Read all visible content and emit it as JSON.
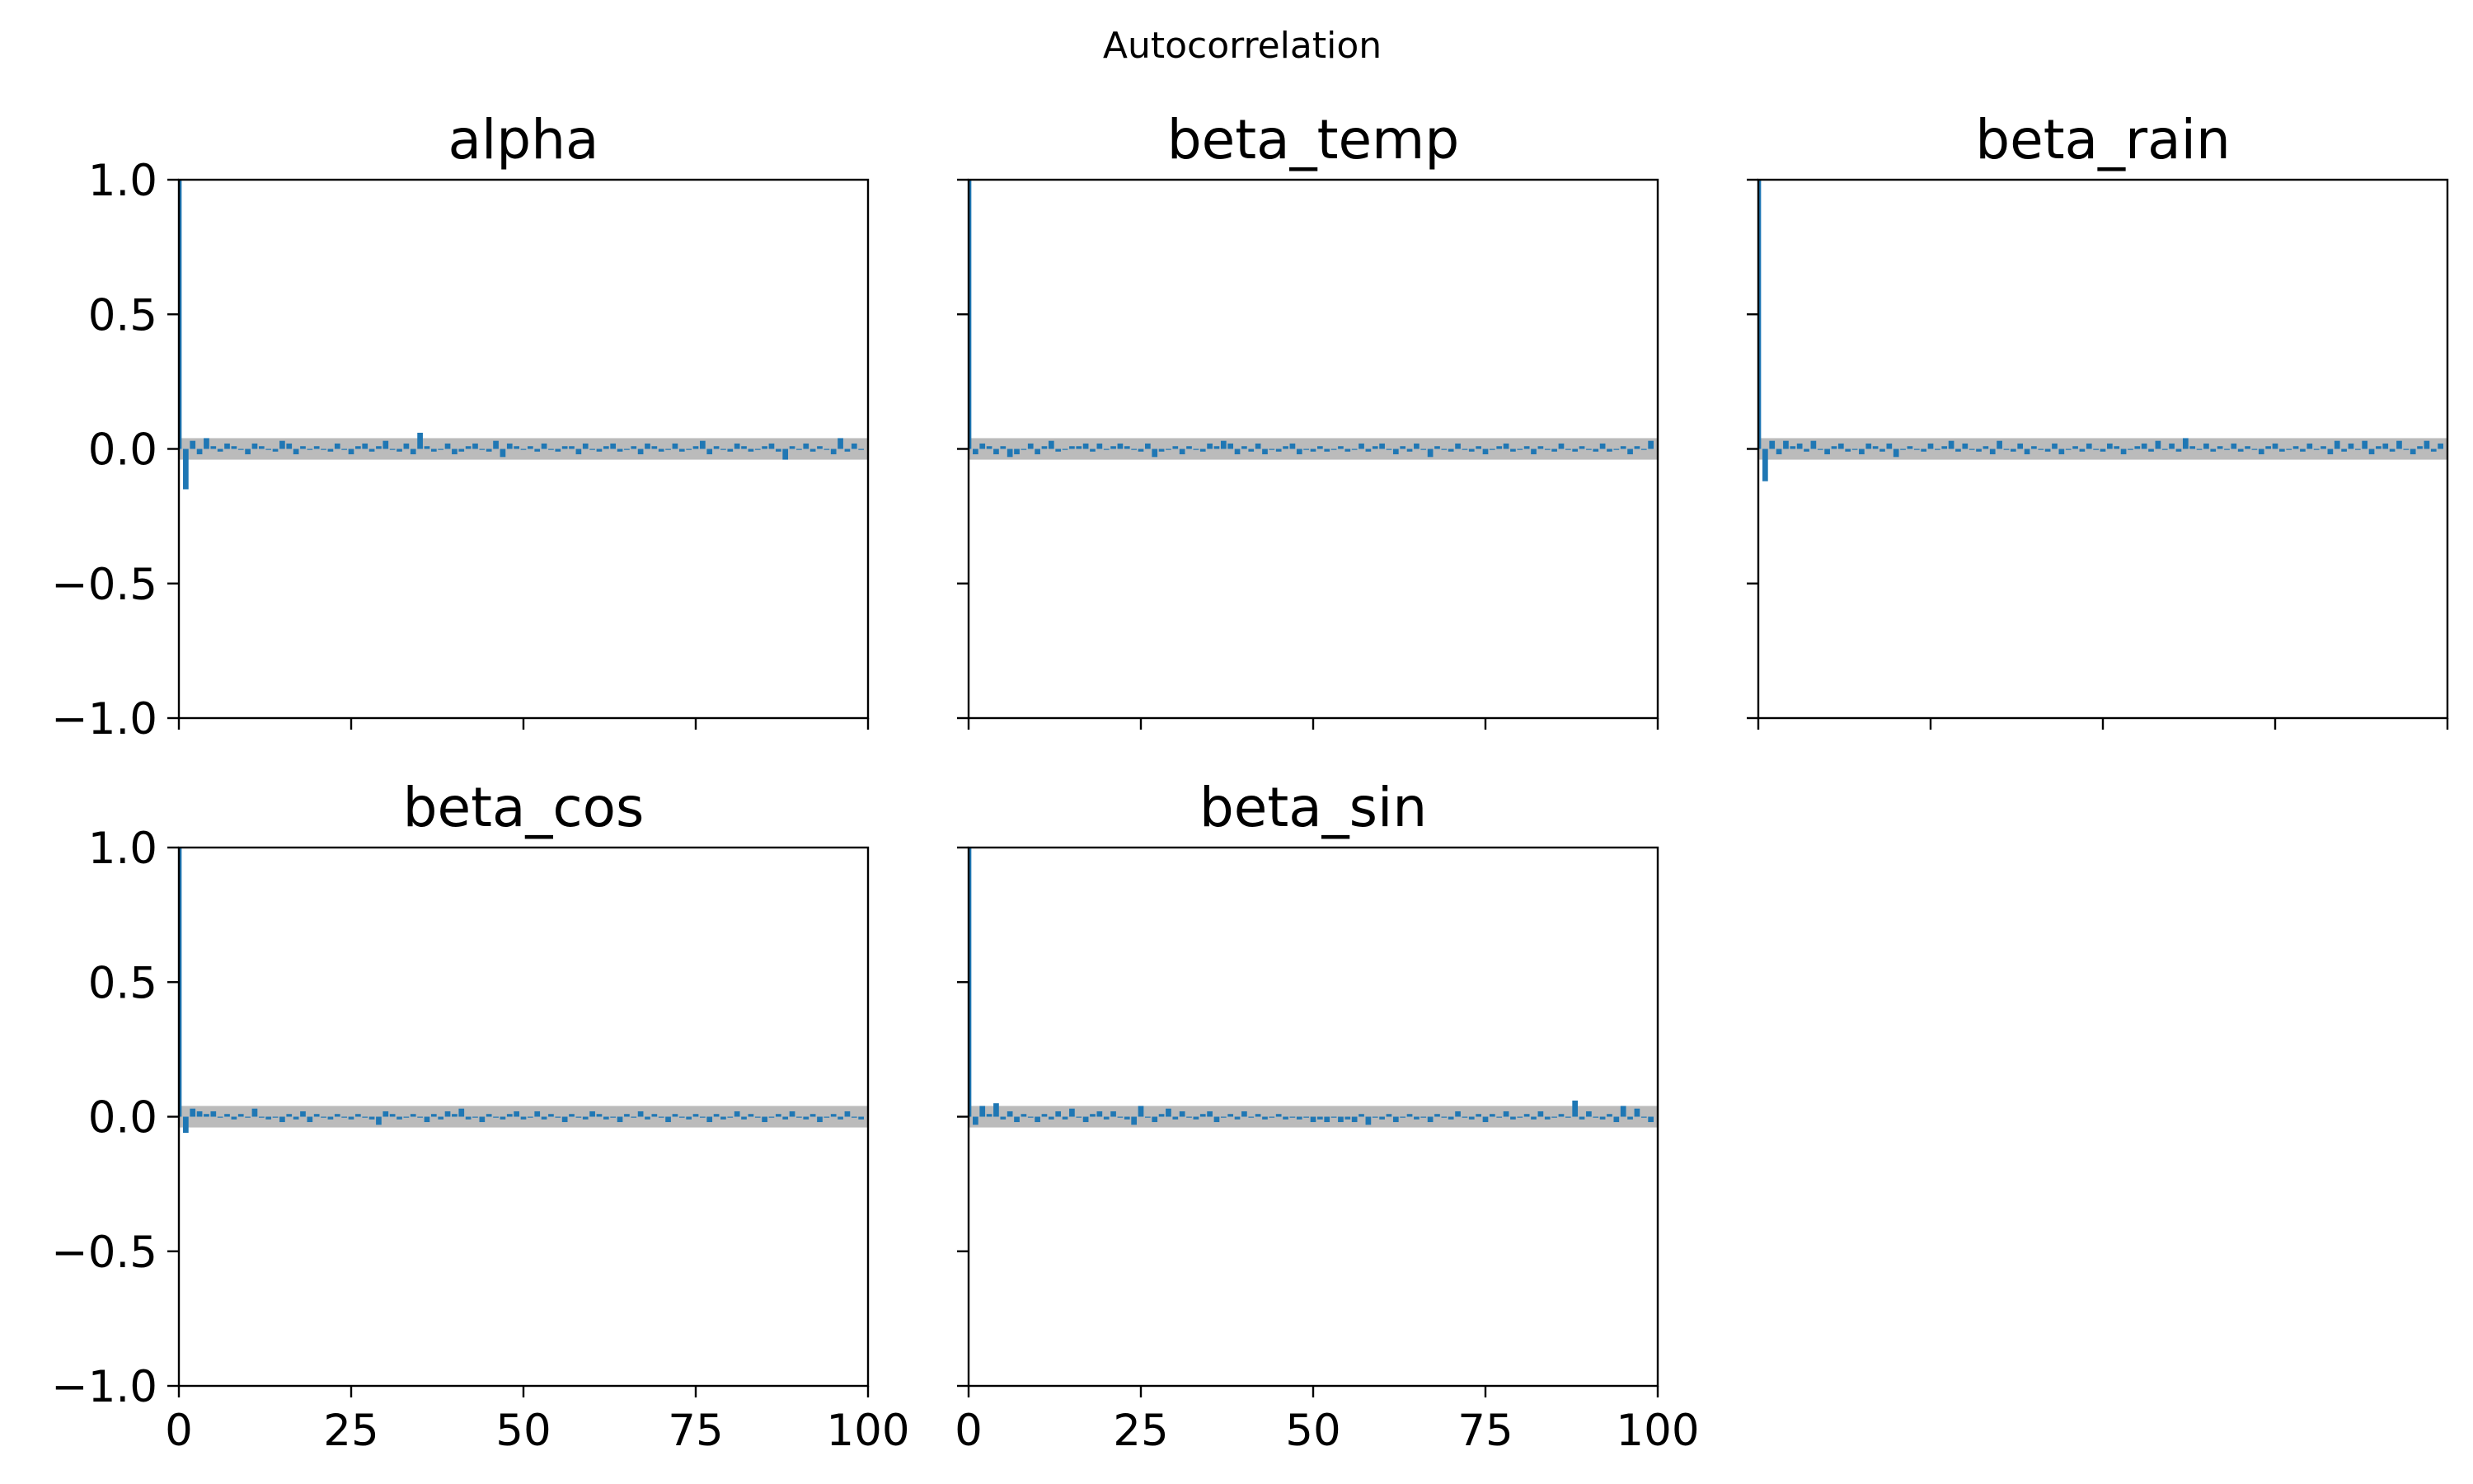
{
  "suptitle": "Autocorrelation",
  "chart_data": {
    "type": "bar",
    "layout": "2x3 grid of autocorrelation subplots, last cell empty, shared axes",
    "xlim": [
      0,
      100
    ],
    "ylim": [
      -1.0,
      1.0
    ],
    "xticks": [
      0,
      25,
      50,
      75,
      100
    ],
    "xtick_labels": [
      "0",
      "25",
      "50",
      "75",
      "100"
    ],
    "yticks": [
      1.0,
      0.5,
      0.0,
      -0.5,
      -1.0
    ],
    "ytick_labels": [
      "1.0",
      "0.5",
      "0.0",
      "−0.5",
      "−1.0"
    ],
    "confidence_band": [
      -0.04,
      0.04
    ],
    "colors": {
      "bars": "#1f77b4",
      "band": "#bbbbbb",
      "axes": "#000000"
    },
    "grid": false,
    "panels": [
      {
        "title": "alpha",
        "lags": [
          0,
          1,
          2,
          3,
          4,
          5,
          6,
          7,
          8,
          9,
          10,
          11,
          12,
          13,
          14,
          15,
          16,
          17,
          18,
          19,
          20,
          21,
          22,
          23,
          24,
          25,
          26,
          27,
          28,
          29,
          30,
          31,
          32,
          33,
          34,
          35,
          36,
          37,
          38,
          39,
          40,
          41,
          42,
          43,
          44,
          45,
          46,
          47,
          48,
          49,
          50,
          51,
          52,
          53,
          54,
          55,
          56,
          57,
          58,
          59,
          60,
          61,
          62,
          63,
          64,
          65,
          66,
          67,
          68,
          69,
          70,
          71,
          72,
          73,
          74,
          75,
          76,
          77,
          78,
          79,
          80,
          81,
          82,
          83,
          84,
          85,
          86,
          87,
          88,
          89,
          90,
          91,
          92,
          93,
          94,
          95,
          96,
          97,
          98,
          99
        ],
        "values": [
          1.0,
          -0.15,
          0.03,
          -0.02,
          0.04,
          0.01,
          -0.01,
          0.02,
          0.01,
          0.0,
          -0.02,
          0.02,
          0.01,
          0.0,
          -0.01,
          0.03,
          0.02,
          -0.02,
          0.01,
          0.0,
          0.01,
          0.0,
          -0.01,
          0.02,
          0.0,
          -0.02,
          0.01,
          0.02,
          -0.01,
          0.01,
          0.03,
          0.0,
          -0.01,
          0.02,
          -0.02,
          0.06,
          0.01,
          -0.01,
          0.0,
          0.02,
          -0.02,
          -0.01,
          0.01,
          0.02,
          0.0,
          -0.01,
          0.03,
          -0.03,
          0.02,
          0.01,
          0.0,
          0.01,
          -0.01,
          0.02,
          0.0,
          -0.01,
          0.01,
          0.01,
          -0.02,
          0.02,
          0.0,
          -0.01,
          0.01,
          0.02,
          -0.01,
          0.0,
          0.01,
          -0.02,
          0.02,
          0.01,
          -0.01,
          0.0,
          0.02,
          -0.01,
          0.0,
          0.01,
          0.03,
          -0.02,
          0.01,
          0.0,
          -0.01,
          0.02,
          0.01,
          -0.01,
          0.0,
          0.01,
          0.02,
          -0.01,
          -0.04,
          0.01,
          0.0,
          0.02,
          -0.01,
          0.01,
          0.0,
          -0.02,
          0.04,
          -0.01,
          0.02,
          0.0
        ]
      },
      {
        "title": "beta_temp",
        "lags": [
          0,
          1,
          2,
          3,
          4,
          5,
          6,
          7,
          8,
          9,
          10,
          11,
          12,
          13,
          14,
          15,
          16,
          17,
          18,
          19,
          20,
          21,
          22,
          23,
          24,
          25,
          26,
          27,
          28,
          29,
          30,
          31,
          32,
          33,
          34,
          35,
          36,
          37,
          38,
          39,
          40,
          41,
          42,
          43,
          44,
          45,
          46,
          47,
          48,
          49,
          50,
          51,
          52,
          53,
          54,
          55,
          56,
          57,
          58,
          59,
          60,
          61,
          62,
          63,
          64,
          65,
          66,
          67,
          68,
          69,
          70,
          71,
          72,
          73,
          74,
          75,
          76,
          77,
          78,
          79,
          80,
          81,
          82,
          83,
          84,
          85,
          86,
          87,
          88,
          89,
          90,
          91,
          92,
          93,
          94,
          95,
          96,
          97,
          98,
          99
        ],
        "values": [
          1.0,
          -0.02,
          0.02,
          0.01,
          -0.02,
          0.01,
          -0.03,
          -0.02,
          0.0,
          0.02,
          -0.02,
          0.01,
          0.03,
          -0.01,
          0.0,
          0.01,
          0.01,
          0.02,
          -0.01,
          0.02,
          0.0,
          0.01,
          0.02,
          0.01,
          0.0,
          -0.01,
          0.02,
          -0.03,
          -0.01,
          0.0,
          0.01,
          -0.02,
          0.01,
          0.0,
          -0.01,
          0.02,
          0.01,
          0.03,
          0.02,
          -0.02,
          0.01,
          -0.01,
          0.02,
          -0.02,
          0.0,
          -0.01,
          0.01,
          0.02,
          -0.02,
          0.0,
          -0.01,
          0.01,
          -0.01,
          0.0,
          0.01,
          -0.01,
          0.0,
          0.02,
          -0.01,
          0.01,
          0.02,
          0.0,
          -0.02,
          0.01,
          -0.01,
          0.02,
          0.0,
          -0.03,
          0.01,
          0.0,
          -0.01,
          0.02,
          0.0,
          -0.01,
          0.01,
          -0.02,
          0.0,
          0.01,
          0.02,
          -0.01,
          0.0,
          0.01,
          -0.02,
          0.01,
          0.0,
          -0.01,
          0.02,
          0.0,
          -0.01,
          0.01,
          0.0,
          -0.01,
          0.02,
          -0.01,
          0.0,
          0.01,
          -0.02,
          0.01,
          0.0,
          0.03
        ]
      },
      {
        "title": "beta_rain",
        "lags": [
          0,
          1,
          2,
          3,
          4,
          5,
          6,
          7,
          8,
          9,
          10,
          11,
          12,
          13,
          14,
          15,
          16,
          17,
          18,
          19,
          20,
          21,
          22,
          23,
          24,
          25,
          26,
          27,
          28,
          29,
          30,
          31,
          32,
          33,
          34,
          35,
          36,
          37,
          38,
          39,
          40,
          41,
          42,
          43,
          44,
          45,
          46,
          47,
          48,
          49,
          50,
          51,
          52,
          53,
          54,
          55,
          56,
          57,
          58,
          59,
          60,
          61,
          62,
          63,
          64,
          65,
          66,
          67,
          68,
          69,
          70,
          71,
          72,
          73,
          74,
          75,
          76,
          77,
          78,
          79,
          80,
          81,
          82,
          83,
          84,
          85,
          86,
          87,
          88,
          89,
          90,
          91,
          92,
          93,
          94,
          95,
          96,
          97,
          98,
          99
        ],
        "values": [
          1.0,
          -0.12,
          0.03,
          -0.02,
          0.03,
          0.01,
          0.02,
          -0.01,
          0.03,
          0.0,
          -0.02,
          0.01,
          0.02,
          -0.01,
          0.0,
          -0.02,
          0.02,
          0.01,
          -0.01,
          0.02,
          -0.03,
          0.0,
          0.01,
          0.0,
          -0.01,
          0.02,
          0.0,
          0.01,
          0.03,
          -0.01,
          0.02,
          0.0,
          -0.01,
          0.01,
          -0.02,
          0.03,
          0.0,
          -0.01,
          0.02,
          -0.02,
          0.01,
          0.0,
          -0.01,
          0.02,
          -0.02,
          0.0,
          0.01,
          -0.01,
          0.02,
          0.0,
          -0.01,
          0.02,
          0.01,
          -0.02,
          0.0,
          0.01,
          0.02,
          -0.01,
          0.03,
          0.0,
          0.02,
          -0.01,
          0.04,
          0.01,
          0.0,
          0.02,
          -0.01,
          0.01,
          0.0,
          0.02,
          -0.01,
          0.01,
          0.0,
          -0.02,
          0.01,
          0.02,
          -0.01,
          0.0,
          0.01,
          -0.01,
          0.02,
          0.0,
          0.01,
          -0.02,
          0.03,
          -0.01,
          0.02,
          0.0,
          0.03,
          -0.02,
          0.01,
          0.02,
          -0.01,
          0.03,
          0.0,
          -0.02,
          0.01,
          0.03,
          -0.01,
          0.02
        ]
      },
      {
        "title": "beta_cos",
        "lags": [
          0,
          1,
          2,
          3,
          4,
          5,
          6,
          7,
          8,
          9,
          10,
          11,
          12,
          13,
          14,
          15,
          16,
          17,
          18,
          19,
          20,
          21,
          22,
          23,
          24,
          25,
          26,
          27,
          28,
          29,
          30,
          31,
          32,
          33,
          34,
          35,
          36,
          37,
          38,
          39,
          40,
          41,
          42,
          43,
          44,
          45,
          46,
          47,
          48,
          49,
          50,
          51,
          52,
          53,
          54,
          55,
          56,
          57,
          58,
          59,
          60,
          61,
          62,
          63,
          64,
          65,
          66,
          67,
          68,
          69,
          70,
          71,
          72,
          73,
          74,
          75,
          76,
          77,
          78,
          79,
          80,
          81,
          82,
          83,
          84,
          85,
          86,
          87,
          88,
          89,
          90,
          91,
          92,
          93,
          94,
          95,
          96,
          97,
          98,
          99
        ],
        "values": [
          1.0,
          -0.06,
          0.03,
          0.02,
          0.01,
          0.02,
          0.0,
          0.01,
          -0.01,
          0.01,
          0.0,
          0.03,
          0.0,
          -0.01,
          0.0,
          -0.02,
          0.01,
          -0.01,
          0.02,
          -0.02,
          0.01,
          0.0,
          -0.01,
          0.01,
          0.0,
          -0.01,
          0.01,
          0.0,
          -0.01,
          -0.03,
          0.02,
          0.01,
          -0.01,
          0.0,
          0.01,
          0.0,
          -0.02,
          0.01,
          -0.01,
          0.02,
          0.01,
          0.03,
          -0.01,
          0.0,
          -0.02,
          0.01,
          0.0,
          -0.01,
          0.01,
          0.02,
          -0.01,
          0.0,
          0.02,
          -0.01,
          0.01,
          0.0,
          -0.02,
          0.01,
          0.0,
          -0.01,
          0.02,
          0.01,
          -0.01,
          0.0,
          -0.02,
          0.01,
          0.0,
          0.02,
          -0.01,
          0.01,
          0.0,
          -0.02,
          0.01,
          0.0,
          -0.01,
          0.01,
          0.0,
          -0.02,
          0.01,
          -0.01,
          0.0,
          0.02,
          -0.01,
          0.01,
          0.0,
          -0.02,
          0.0,
          0.01,
          -0.01,
          0.02,
          0.0,
          -0.01,
          0.01,
          -0.02,
          0.0,
          0.01,
          -0.01,
          0.02,
          0.0,
          -0.01
        ]
      },
      {
        "title": "beta_sin",
        "lags": [
          0,
          1,
          2,
          3,
          4,
          5,
          6,
          7,
          8,
          9,
          10,
          11,
          12,
          13,
          14,
          15,
          16,
          17,
          18,
          19,
          20,
          21,
          22,
          23,
          24,
          25,
          26,
          27,
          28,
          29,
          30,
          31,
          32,
          33,
          34,
          35,
          36,
          37,
          38,
          39,
          40,
          41,
          42,
          43,
          44,
          45,
          46,
          47,
          48,
          49,
          50,
          51,
          52,
          53,
          54,
          55,
          56,
          57,
          58,
          59,
          60,
          61,
          62,
          63,
          64,
          65,
          66,
          67,
          68,
          69,
          70,
          71,
          72,
          73,
          74,
          75,
          76,
          77,
          78,
          79,
          80,
          81,
          82,
          83,
          84,
          85,
          86,
          87,
          88,
          89,
          90,
          91,
          92,
          93,
          94,
          95,
          96,
          97,
          98,
          99
        ],
        "values": [
          1.0,
          -0.03,
          0.04,
          0.01,
          0.05,
          -0.01,
          0.02,
          -0.02,
          0.01,
          0.0,
          -0.02,
          0.01,
          -0.01,
          0.02,
          -0.01,
          0.03,
          0.0,
          -0.02,
          0.01,
          0.02,
          -0.01,
          0.02,
          0.0,
          -0.01,
          -0.03,
          0.04,
          0.0,
          -0.02,
          0.01,
          0.03,
          -0.01,
          0.02,
          0.0,
          -0.01,
          0.01,
          0.02,
          -0.02,
          0.0,
          0.01,
          -0.01,
          0.02,
          0.0,
          0.01,
          -0.01,
          0.0,
          0.01,
          -0.01,
          0.0,
          -0.01,
          0.0,
          -0.02,
          -0.01,
          -0.02,
          0.0,
          -0.02,
          -0.01,
          -0.02,
          0.01,
          -0.03,
          0.0,
          -0.01,
          0.01,
          -0.02,
          0.0,
          0.01,
          -0.01,
          0.0,
          -0.02,
          0.01,
          0.0,
          -0.01,
          0.02,
          0.0,
          -0.01,
          0.01,
          -0.02,
          0.01,
          0.0,
          0.02,
          -0.01,
          0.0,
          0.01,
          -0.01,
          0.02,
          -0.01,
          0.0,
          0.01,
          0.0,
          0.06,
          -0.01,
          0.02,
          0.0,
          -0.01,
          0.01,
          -0.02,
          0.04,
          -0.01,
          0.03,
          0.0,
          -0.02
        ]
      }
    ]
  }
}
